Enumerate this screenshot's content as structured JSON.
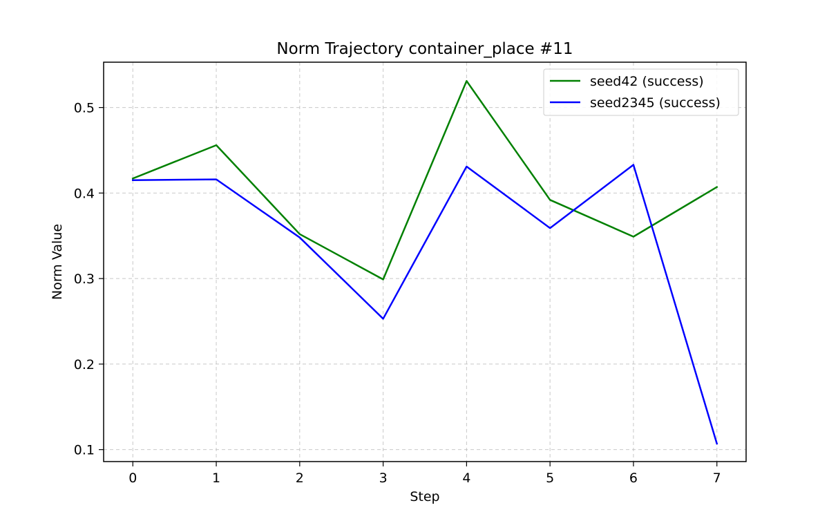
{
  "chart_data": {
    "type": "line",
    "title": "Norm Trajectory container_place #11",
    "xlabel": "Step",
    "ylabel": "Norm Value",
    "x": [
      0,
      1,
      2,
      3,
      4,
      5,
      6,
      7
    ],
    "xticks": [
      "0",
      "1",
      "2",
      "3",
      "4",
      "5",
      "6",
      "7"
    ],
    "yticks": [
      "0.1",
      "0.2",
      "0.3",
      "0.4",
      "0.5"
    ],
    "xlim": [
      -0.35,
      7.35
    ],
    "ylim": [
      0.086,
      0.553
    ],
    "grid": true,
    "legend_position": "top-right",
    "series": [
      {
        "name": "seed42 (success)",
        "color": "#008000",
        "values": [
          0.417,
          0.456,
          0.352,
          0.299,
          0.531,
          0.392,
          0.349,
          0.407
        ]
      },
      {
        "name": "seed2345 (success)",
        "color": "#0000ff",
        "values": [
          0.415,
          0.416,
          0.348,
          0.253,
          0.431,
          0.359,
          0.433,
          0.107
        ]
      }
    ]
  }
}
